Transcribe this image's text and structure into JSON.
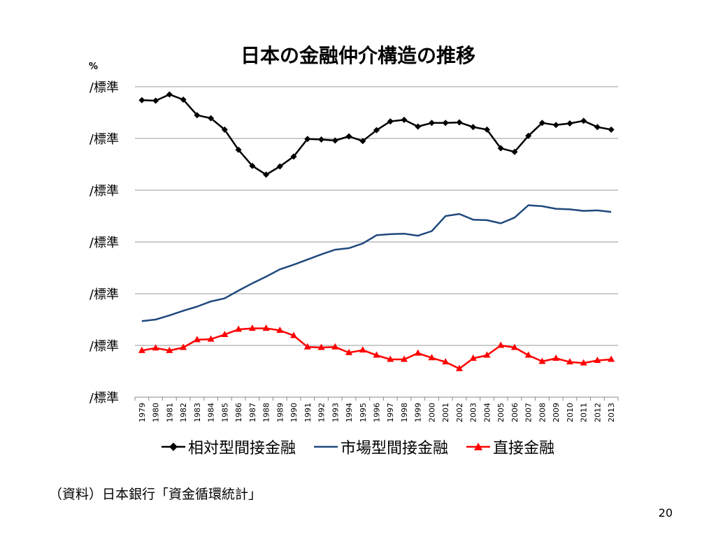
{
  "slide": {
    "title": "日本の金融仲介構造の推移",
    "unit": "%",
    "source_note": "（資料）日本銀行「資金循環統計」",
    "page_number": "20"
  },
  "chart_data": {
    "type": "line",
    "title": "日本の金融仲介構造の推移",
    "ylabel": "%",
    "xlabel": "",
    "y_tick_labels": [
      "/標準",
      "/標準",
      "/標準",
      "/標準",
      "/標準",
      "/標準",
      "/標準"
    ],
    "categories": [
      "1979",
      "1980",
      "1981",
      "1982",
      "1983",
      "1984",
      "1985",
      "1986",
      "1987",
      "1988",
      "1989",
      "1990",
      "1991",
      "1992",
      "1993",
      "1994",
      "1995",
      "1996",
      "1997",
      "1998",
      "1999",
      "2000",
      "2001",
      "2002",
      "2003",
      "2004",
      "2005",
      "2006",
      "2007",
      "2008",
      "2009",
      "2010",
      "2011",
      "2012",
      "2013"
    ],
    "ylim": [
      0,
      60
    ],
    "grid": true,
    "legend_position": "bottom",
    "series": [
      {
        "name": "相対型間接金融",
        "color": "#000000",
        "marker": "diamond",
        "values": [
          57.4,
          57.3,
          58.5,
          57.5,
          54.5,
          53.9,
          51.7,
          47.8,
          44.7,
          43.0,
          44.6,
          46.5,
          49.9,
          49.8,
          49.6,
          50.4,
          49.5,
          51.6,
          53.3,
          53.6,
          52.3,
          53.0,
          53.0,
          53.1,
          52.2,
          51.7,
          48.1,
          47.4,
          50.5,
          53.0,
          52.6,
          52.9,
          53.4,
          52.2,
          51.7
        ]
      },
      {
        "name": "市場型間接金融",
        "color": "#1f497d",
        "marker": "none",
        "values": [
          14.7,
          15.0,
          15.8,
          16.7,
          17.5,
          18.5,
          19.1,
          20.6,
          22.0,
          23.3,
          24.7,
          25.6,
          26.6,
          27.6,
          28.5,
          28.8,
          29.7,
          31.3,
          31.5,
          31.6,
          31.2,
          32.1,
          35.0,
          35.4,
          34.3,
          34.2,
          33.6,
          34.7,
          37.1,
          36.9,
          36.4,
          36.3,
          36.0,
          36.1,
          35.8
        ]
      },
      {
        "name": "直接金融",
        "color": "#ff0000",
        "marker": "triangle",
        "values": [
          9.0,
          9.5,
          9.0,
          9.6,
          11.1,
          11.2,
          12.1,
          13.1,
          13.3,
          13.3,
          12.9,
          11.9,
          9.7,
          9.6,
          9.7,
          8.6,
          9.1,
          8.1,
          7.3,
          7.3,
          8.5,
          7.6,
          6.8,
          5.5,
          7.5,
          8.1,
          10.0,
          9.6,
          8.1,
          6.9,
          7.5,
          6.8,
          6.6,
          7.1,
          7.3
        ]
      }
    ]
  }
}
